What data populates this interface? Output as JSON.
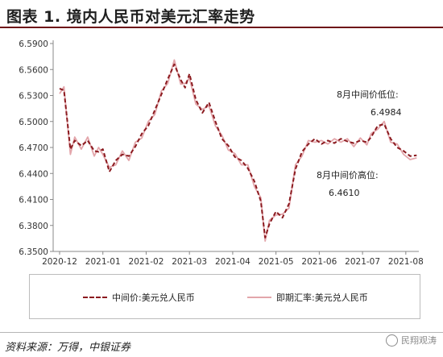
{
  "title": "图表 1. 境内人民币对美元汇率走势",
  "source": "资料来源：万得，中银证券",
  "watermark": "民翔观涛",
  "legend": {
    "series1": "中间价:美元兑人民币",
    "series2": "即期汇率:美元兑人民币"
  },
  "annotations": {
    "low_label": "8月中间价低位:",
    "low_value": "6.4984",
    "high_label": "8月中间价高位:",
    "high_value": "6.4610"
  },
  "colors": {
    "series1": "#8b1a1f",
    "series2": "#e3a6ab",
    "axis": "#888888"
  },
  "chart_data": {
    "type": "line",
    "ylim": [
      6.35,
      6.59
    ],
    "y_ticks": [
      "6.5900",
      "6.5600",
      "6.5300",
      "6.5000",
      "6.4700",
      "6.4400",
      "6.4100",
      "6.3800",
      "6.3500"
    ],
    "x_ticks": [
      "2020-12",
      "2021-01",
      "2021-02",
      "2021-03",
      "2021-04",
      "2021-05",
      "2021-06",
      "2021-07",
      "2021-08"
    ],
    "grid": false,
    "legend_position": "bottom",
    "series": [
      {
        "name": "中间价:美元兑人民币",
        "style": "dashed",
        "x": [
          0,
          0.1,
          0.25,
          0.35,
          0.5,
          0.65,
          0.8,
          0.9,
          1.0,
          1.15,
          1.3,
          1.45,
          1.6,
          1.75,
          1.9,
          2.05,
          2.2,
          2.35,
          2.5,
          2.65,
          2.8,
          2.9,
          3.0,
          3.15,
          3.3,
          3.45,
          3.6,
          3.75,
          3.9,
          4.05,
          4.2,
          4.35,
          4.5,
          4.65,
          4.75,
          4.85,
          5.0,
          5.15,
          5.3,
          5.45,
          5.6,
          5.75,
          5.9,
          6.05,
          6.2,
          6.35,
          6.5,
          6.65,
          6.8,
          6.95,
          7.1,
          7.2,
          7.35,
          7.5,
          7.65,
          7.8,
          7.95,
          8.1,
          8.25
        ],
        "values": [
          6.538,
          6.536,
          6.468,
          6.478,
          6.472,
          6.478,
          6.466,
          6.465,
          6.468,
          6.442,
          6.455,
          6.462,
          6.46,
          6.471,
          6.486,
          6.495,
          6.513,
          6.531,
          6.549,
          6.566,
          6.548,
          6.539,
          6.555,
          6.525,
          6.51,
          6.522,
          6.5,
          6.48,
          6.472,
          6.459,
          6.455,
          6.446,
          6.431,
          6.408,
          6.366,
          6.382,
          6.396,
          6.389,
          6.405,
          6.445,
          6.465,
          6.474,
          6.48,
          6.474,
          6.478,
          6.475,
          6.48,
          6.477,
          6.475,
          6.478,
          6.476,
          6.482,
          6.495,
          6.497,
          6.48,
          6.47,
          6.466,
          6.46,
          6.461
        ]
      },
      {
        "name": "即期汇率:美元兑人民币",
        "style": "solid",
        "x": [
          0,
          0.1,
          0.25,
          0.35,
          0.5,
          0.65,
          0.8,
          0.9,
          1.0,
          1.15,
          1.3,
          1.45,
          1.6,
          1.75,
          1.9,
          2.05,
          2.2,
          2.35,
          2.5,
          2.65,
          2.8,
          2.9,
          3.0,
          3.15,
          3.3,
          3.45,
          3.6,
          3.75,
          3.9,
          4.05,
          4.2,
          4.35,
          4.5,
          4.65,
          4.75,
          4.85,
          5.0,
          5.15,
          5.3,
          5.45,
          5.6,
          5.75,
          5.9,
          6.05,
          6.2,
          6.35,
          6.5,
          6.65,
          6.8,
          6.95,
          7.1,
          7.2,
          7.35,
          7.5,
          7.65,
          7.8,
          7.95,
          8.1,
          8.25
        ],
        "values": [
          6.532,
          6.54,
          6.462,
          6.482,
          6.468,
          6.482,
          6.46,
          6.47,
          6.462,
          6.447,
          6.45,
          6.466,
          6.455,
          6.476,
          6.481,
          6.5,
          6.508,
          6.535,
          6.544,
          6.571,
          6.543,
          6.544,
          6.55,
          6.52,
          6.514,
          6.518,
          6.495,
          6.484,
          6.467,
          6.463,
          6.45,
          6.45,
          6.425,
          6.412,
          6.362,
          6.386,
          6.392,
          6.393,
          6.4,
          6.45,
          6.46,
          6.478,
          6.476,
          6.478,
          6.474,
          6.48,
          6.476,
          6.48,
          6.471,
          6.481,
          6.473,
          6.486,
          6.491,
          6.5,
          6.476,
          6.474,
          6.462,
          6.456,
          6.458
        ]
      }
    ]
  }
}
